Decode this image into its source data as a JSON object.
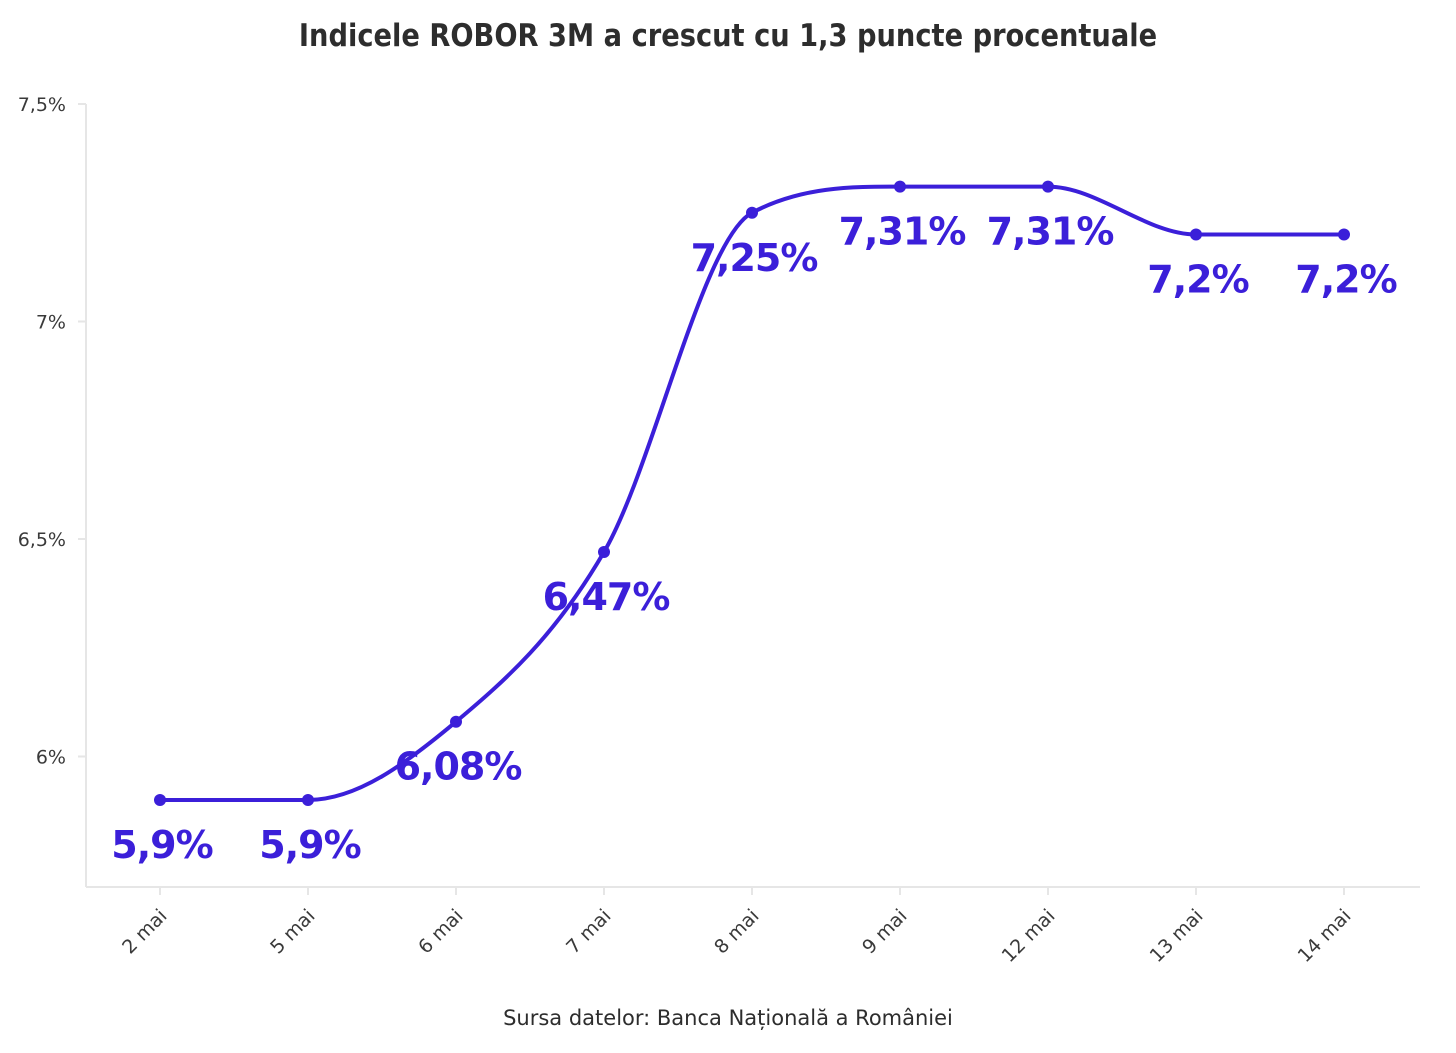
{
  "chart_data": {
    "type": "line",
    "title": "Indicele ROBOR 3M a crescut cu 1,3 puncte procentuale",
    "source": "Sursa datelor: Banca Națională a României",
    "categories": [
      "2 mai",
      "5 mai",
      "6 mai",
      "7 mai",
      "8 mai",
      "9 mai",
      "12 mai",
      "13 mai",
      "14 mai"
    ],
    "series": [
      {
        "values": [
          5.9,
          5.9,
          6.08,
          6.47,
          7.25,
          7.31,
          7.31,
          7.2,
          7.2
        ],
        "data_labels": [
          "5,9%",
          "5,9%",
          "6,08%",
          "6,47%",
          "7,25%",
          "7,31%",
          "7,31%",
          "7,2%",
          "7,2%"
        ]
      }
    ],
    "y_ticks": [
      6.0,
      6.5,
      7.0,
      7.5
    ],
    "y_tick_labels": [
      "6%",
      "6,5%",
      "7%",
      "7,5%"
    ],
    "ylim": [
      5.7,
      7.5
    ],
    "xlabel": "",
    "ylabel": "",
    "grid": false,
    "legend": "none",
    "line_style": "smooth",
    "colors": {
      "series": "#3b1fd9",
      "axis": "#e6e6e6",
      "text": "#2d2d2d"
    }
  }
}
